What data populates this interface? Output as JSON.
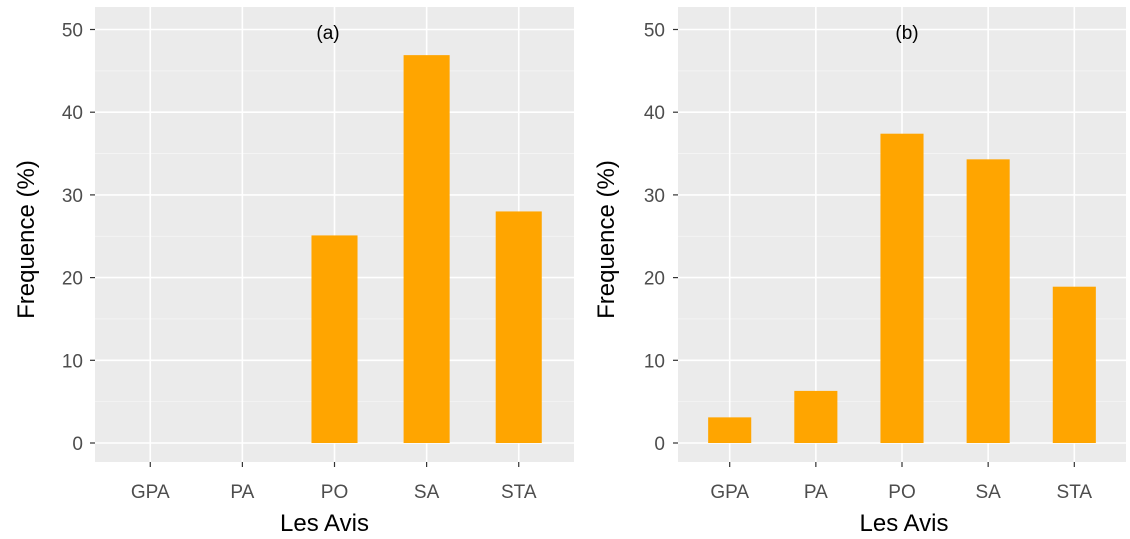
{
  "colors": {
    "bar": "#FFA500",
    "panel_background": "#EBEBEB",
    "grid": "#FFFFFF"
  },
  "chart_data": [
    {
      "type": "bar",
      "title": "(a)",
      "xlabel": "Les Avis",
      "ylabel": "Frequence (%)",
      "categories": [
        "GPA",
        "PA",
        "PO",
        "SA",
        "STA"
      ],
      "values": [
        0,
        0,
        25.1,
        46.9,
        28.0
      ],
      "ylim": [
        0,
        50
      ],
      "yticks": [
        0,
        10,
        20,
        30,
        40,
        50
      ],
      "grid": true,
      "legend": "none"
    },
    {
      "type": "bar",
      "title": "(b)",
      "xlabel": "Les Avis",
      "ylabel": "Frequence (%)",
      "categories": [
        "GPA",
        "PA",
        "PO",
        "SA",
        "STA"
      ],
      "values": [
        3.1,
        6.3,
        37.4,
        34.3,
        18.9
      ],
      "ylim": [
        0,
        50
      ],
      "yticks": [
        0,
        10,
        20,
        30,
        40,
        50
      ],
      "grid": true,
      "legend": "none"
    }
  ]
}
